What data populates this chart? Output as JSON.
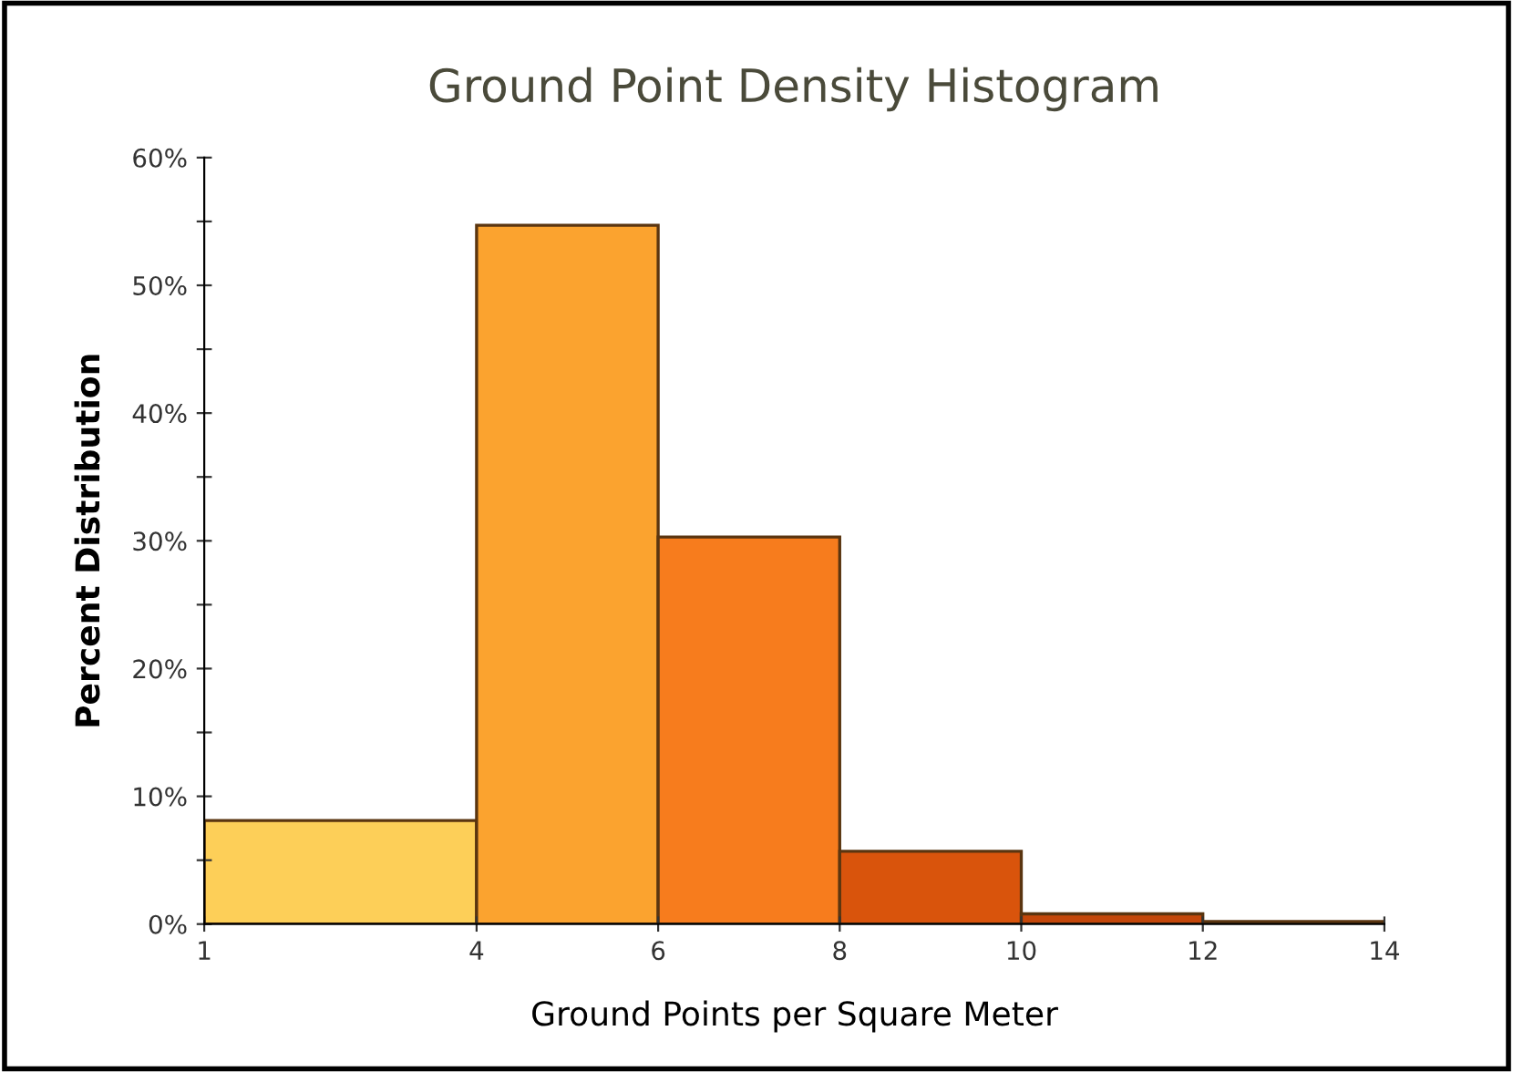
{
  "chart_data": {
    "type": "histogram",
    "title": "Ground Point Density Histogram",
    "xlabel": "Ground Points per Square Meter",
    "ylabel": "Percent Distribution",
    "bins": [
      1,
      4,
      6,
      8,
      10,
      12,
      14
    ],
    "values": [
      8.1,
      54.7,
      30.3,
      5.7,
      0.8,
      0.2
    ],
    "colors": [
      "#fdcf58",
      "#fba32f",
      "#f77c1d",
      "#d9540c",
      "#c4470a",
      "#b03d08"
    ],
    "xlim": [
      1,
      14
    ],
    "xticks": [
      1,
      4,
      6,
      8,
      10,
      12,
      14
    ],
    "ylim": [
      0,
      60
    ],
    "yticks": [
      {
        "value": 0,
        "label": "0%"
      },
      {
        "value": 5,
        "label": null
      },
      {
        "value": 10,
        "label": "10%"
      },
      {
        "value": 15,
        "label": null
      },
      {
        "value": 20,
        "label": "20%"
      },
      {
        "value": 25,
        "label": null
      },
      {
        "value": 30,
        "label": "30%"
      },
      {
        "value": 35,
        "label": null
      },
      {
        "value": 40,
        "label": "40%"
      },
      {
        "value": 45,
        "label": null
      },
      {
        "value": 50,
        "label": "50%"
      },
      {
        "value": 55,
        "label": null
      },
      {
        "value": 60,
        "label": "60%"
      }
    ],
    "grid": false,
    "legend": false
  }
}
